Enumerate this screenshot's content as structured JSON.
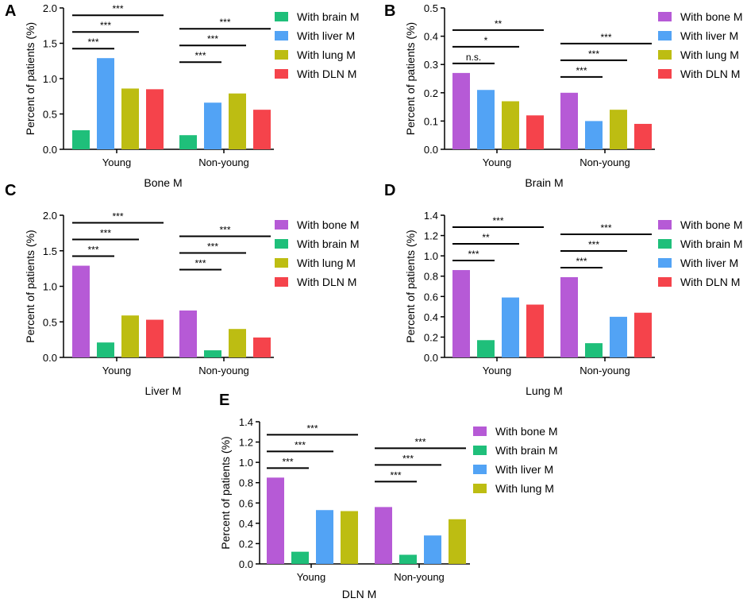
{
  "figure": {
    "ylabel": "Percent of patients (%)",
    "colors": {
      "bone": "#b65ad6",
      "brain": "#1fbf7a",
      "liver": "#52a3f5",
      "lung": "#bdbd12",
      "dln": "#f5434b"
    }
  },
  "chart_data": [
    {
      "panel": "A",
      "type": "bar",
      "xlabel": "Bone M",
      "ylabel": "Percent of patients (%)",
      "categories": [
        "Young",
        "Non-young"
      ],
      "ylim": [
        0,
        2.0
      ],
      "yticks": [
        "0.0",
        "0.5",
        "1.0",
        "1.5",
        "2.0"
      ],
      "series": [
        {
          "name": "With brain M",
          "color_key": "brain",
          "values": [
            0.27,
            0.2
          ]
        },
        {
          "name": "With liver M",
          "color_key": "liver",
          "values": [
            1.29,
            0.66
          ]
        },
        {
          "name": "With lung M",
          "color_key": "lung",
          "values": [
            0.86,
            0.79
          ]
        },
        {
          "name": "With DLN M",
          "color_key": "dln",
          "values": [
            0.85,
            0.56
          ]
        }
      ],
      "significance": [
        {
          "category": 0,
          "to_series": 1,
          "label": "***",
          "level": 0
        },
        {
          "category": 0,
          "to_series": 2,
          "label": "***",
          "level": 1
        },
        {
          "category": 0,
          "to_series": 3,
          "label": "***",
          "level": 2
        },
        {
          "category": 1,
          "to_series": 1,
          "label": "***",
          "level": 0,
          "start_series": 0
        },
        {
          "category": 1,
          "to_series": 2,
          "label": "***",
          "level": 1,
          "start_series": 1
        },
        {
          "category": 1,
          "to_series": 3,
          "label": "***",
          "level": 2,
          "start_series": 2
        }
      ]
    },
    {
      "panel": "B",
      "type": "bar",
      "xlabel": "Brain M",
      "ylabel": "Percent of patients (%)",
      "categories": [
        "Young",
        "Non-young"
      ],
      "ylim": [
        0,
        0.5
      ],
      "yticks": [
        "0.0",
        "0.1",
        "0.2",
        "0.3",
        "0.4",
        "0.5"
      ],
      "series": [
        {
          "name": "With bone M",
          "color_key": "bone",
          "values": [
            0.27,
            0.2
          ]
        },
        {
          "name": "With liver M",
          "color_key": "liver",
          "values": [
            0.21,
            0.1
          ]
        },
        {
          "name": "With lung M",
          "color_key": "lung",
          "values": [
            0.17,
            0.14
          ]
        },
        {
          "name": "With DLN M",
          "color_key": "dln",
          "values": [
            0.12,
            0.09
          ]
        }
      ],
      "significance": [
        {
          "category": 0,
          "to_series": 1,
          "label": "n.s.",
          "level": 0
        },
        {
          "category": 0,
          "to_series": 2,
          "label": "*",
          "level": 1
        },
        {
          "category": 0,
          "to_series": 3,
          "label": "**",
          "level": 2
        },
        {
          "category": 1,
          "to_series": 1,
          "label": "***",
          "level": 0
        },
        {
          "category": 1,
          "to_series": 2,
          "label": "***",
          "level": 1
        },
        {
          "category": 1,
          "to_series": 3,
          "label": "***",
          "level": 2
        }
      ]
    },
    {
      "panel": "C",
      "type": "bar",
      "xlabel": "Liver M",
      "ylabel": "Percent of patients (%)",
      "categories": [
        "Young",
        "Non-young"
      ],
      "ylim": [
        0,
        2.0
      ],
      "yticks": [
        "0.0",
        "0.5",
        "1.0",
        "1.5",
        "2.0"
      ],
      "series": [
        {
          "name": "With bone M",
          "color_key": "bone",
          "values": [
            1.29,
            0.66
          ]
        },
        {
          "name": "With brain M",
          "color_key": "brain",
          "values": [
            0.21,
            0.1
          ]
        },
        {
          "name": "With lung M",
          "color_key": "lung",
          "values": [
            0.59,
            0.4
          ]
        },
        {
          "name": "With DLN M",
          "color_key": "dln",
          "values": [
            0.53,
            0.28
          ]
        }
      ],
      "significance": [
        {
          "category": 0,
          "to_series": 1,
          "label": "***",
          "level": 0
        },
        {
          "category": 0,
          "to_series": 2,
          "label": "***",
          "level": 1
        },
        {
          "category": 0,
          "to_series": 3,
          "label": "***",
          "level": 2
        },
        {
          "category": 1,
          "to_series": 1,
          "label": "***",
          "level": 0
        },
        {
          "category": 1,
          "to_series": 2,
          "label": "***",
          "level": 1
        },
        {
          "category": 1,
          "to_series": 3,
          "label": "***",
          "level": 2
        }
      ]
    },
    {
      "panel": "D",
      "type": "bar",
      "xlabel": "Lung M",
      "ylabel": "Percent of patients (%)",
      "categories": [
        "Young",
        "Non-young"
      ],
      "ylim": [
        0,
        1.4
      ],
      "yticks": [
        "0.0",
        "0.2",
        "0.4",
        "0.6",
        "0.8",
        "1.0",
        "1.2",
        "1.4"
      ],
      "series": [
        {
          "name": "With bone M",
          "color_key": "bone",
          "values": [
            0.86,
            0.79
          ]
        },
        {
          "name": "With brain M",
          "color_key": "brain",
          "values": [
            0.17,
            0.14
          ]
        },
        {
          "name": "With liver M",
          "color_key": "liver",
          "values": [
            0.59,
            0.4
          ]
        },
        {
          "name": "With DLN M",
          "color_key": "dln",
          "values": [
            0.52,
            0.44
          ]
        }
      ],
      "significance": [
        {
          "category": 0,
          "to_series": 1,
          "label": "***",
          "level": 0
        },
        {
          "category": 0,
          "to_series": 2,
          "label": "**",
          "level": 1
        },
        {
          "category": 0,
          "to_series": 3,
          "label": "***",
          "level": 2
        },
        {
          "category": 1,
          "to_series": 1,
          "label": "***",
          "level": 0
        },
        {
          "category": 1,
          "to_series": 2,
          "label": "***",
          "level": 1
        },
        {
          "category": 1,
          "to_series": 3,
          "label": "***",
          "level": 2
        }
      ]
    },
    {
      "panel": "E",
      "type": "bar",
      "xlabel": "DLN M",
      "ylabel": "Percent of patients (%)",
      "categories": [
        "Young",
        "Non-young"
      ],
      "ylim": [
        0,
        1.4
      ],
      "yticks": [
        "0.0",
        "0.2",
        "0.4",
        "0.6",
        "0.8",
        "1.0",
        "1.2",
        "1.4"
      ],
      "series": [
        {
          "name": "With bone M",
          "color_key": "bone",
          "values": [
            0.85,
            0.56
          ]
        },
        {
          "name": "With brain M",
          "color_key": "brain",
          "values": [
            0.12,
            0.09
          ]
        },
        {
          "name": "With liver M",
          "color_key": "liver",
          "values": [
            0.53,
            0.28
          ]
        },
        {
          "name": "With lung M",
          "color_key": "lung",
          "values": [
            0.52,
            0.44
          ]
        }
      ],
      "significance": [
        {
          "category": 0,
          "to_series": 1,
          "label": "***",
          "level": 0
        },
        {
          "category": 0,
          "to_series": 2,
          "label": "***",
          "level": 1
        },
        {
          "category": 0,
          "to_series": 3,
          "label": "***",
          "level": 2
        },
        {
          "category": 1,
          "to_series": 1,
          "label": "***",
          "level": 0
        },
        {
          "category": 1,
          "to_series": 2,
          "label": "***",
          "level": 1
        },
        {
          "category": 1,
          "to_series": 3,
          "label": "***",
          "level": 2
        }
      ]
    }
  ]
}
